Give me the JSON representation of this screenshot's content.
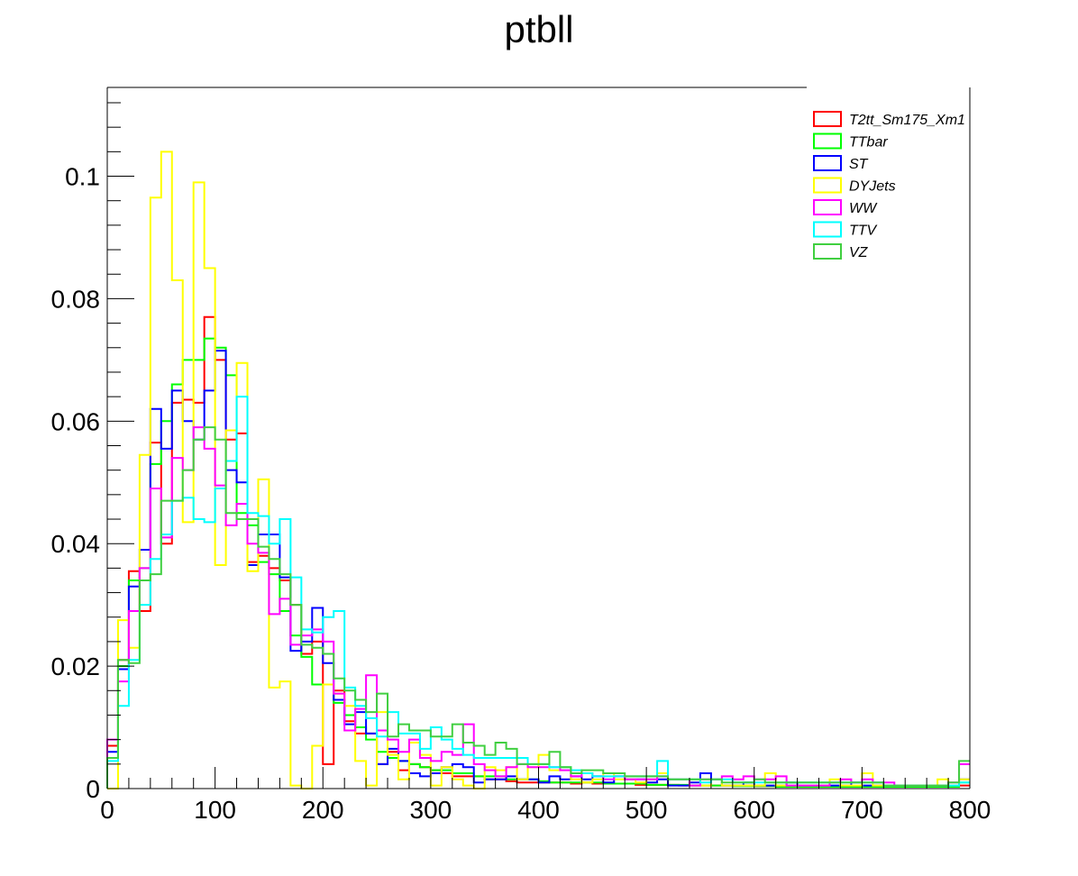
{
  "chart_data": {
    "type": "histogram",
    "title": "ptbll",
    "xlabel": "",
    "ylabel": "",
    "xlim": [
      0,
      800
    ],
    "ylim": [
      0,
      0.1145
    ],
    "bin_width": 10,
    "x_ticks": [
      {
        "value": 0,
        "label": "0"
      },
      {
        "value": 100,
        "label": "100"
      },
      {
        "value": 200,
        "label": "200"
      },
      {
        "value": 300,
        "label": "300"
      },
      {
        "value": 400,
        "label": "400"
      },
      {
        "value": 500,
        "label": "500"
      },
      {
        "value": 600,
        "label": "600"
      },
      {
        "value": 700,
        "label": "700"
      },
      {
        "value": 800,
        "label": "800"
      }
    ],
    "y_ticks": [
      {
        "value": 0,
        "label": "0"
      },
      {
        "value": 0.02,
        "label": "0.02"
      },
      {
        "value": 0.04,
        "label": "0.04"
      },
      {
        "value": 0.06,
        "label": "0.06"
      },
      {
        "value": 0.08,
        "label": "0.08"
      },
      {
        "value": 0.1,
        "label": "0.1"
      }
    ],
    "grid": false,
    "legend_position": "top-right",
    "series": [
      {
        "name": "T2tt_Sm175_Xm1",
        "color": "#ff0000",
        "values": [
          0.007,
          0.021,
          0.0355,
          0.029,
          0.0565,
          0.04,
          0.063,
          0.0635,
          0.063,
          0.077,
          0.07,
          0.057,
          0.058,
          0.037,
          0.038,
          0.036,
          0.034,
          0.03,
          0.022,
          0.024,
          0.004,
          0.016,
          0.011,
          0.009,
          0.009,
          0.004,
          0.006,
          0.003,
          0.004,
          0.0035,
          0.003,
          0.0025,
          0.002,
          0.002,
          0.002,
          0.0015,
          0.0015,
          0.0012,
          0.001,
          0.001,
          0.001,
          0.001,
          0.001,
          0.0008,
          0.001,
          0.0008,
          0.0008,
          0.0008,
          0.0008,
          0.0006,
          0.0006,
          0.0006,
          0.0006,
          0.0005,
          0.0005,
          0.0005,
          0.0005,
          0.0005,
          0.0005,
          0.0005,
          0.0004,
          0.0004,
          0.0004,
          0.0004,
          0.0004,
          0.0003,
          0.0003,
          0.0003,
          0.0003,
          0.0003,
          0.0003,
          0.0003,
          0.0003,
          0.0003,
          0.0003,
          0.0003,
          0.0003,
          0.0003,
          0.0003,
          0.0005
        ]
      },
      {
        "name": "TTbar",
        "color": "#00ff00",
        "values": [
          0.005,
          0.02,
          0.034,
          0.036,
          0.053,
          0.06,
          0.066,
          0.07,
          0.07,
          0.0735,
          0.072,
          0.0675,
          0.045,
          0.043,
          0.037,
          0.035,
          0.029,
          0.025,
          0.0215,
          0.017,
          0.017,
          0.014,
          0.012,
          0.01,
          0.008,
          0.006,
          0.005,
          0.0045,
          0.004,
          0.0035,
          0.003,
          0.003,
          0.0025,
          0.0025,
          0.002,
          0.002,
          0.002,
          0.0015,
          0.0015,
          0.0015,
          0.0012,
          0.001,
          0.001,
          0.001,
          0.001,
          0.001,
          0.0008,
          0.0008,
          0.0008,
          0.0008,
          0.0006,
          0.0006,
          0.0006,
          0.0006,
          0.0005,
          0.0005,
          0.0005,
          0.0005,
          0.0004,
          0.0004,
          0.0004,
          0.0004,
          0.0003,
          0.0003,
          0.0003,
          0.0003,
          0.0003,
          0.0003,
          0.0003,
          0.0003,
          0.0003,
          0.0003,
          0.0003,
          0.0003,
          0.0003,
          0.0003,
          0.0003,
          0.0003,
          0.0003,
          0.001
        ]
      },
      {
        "name": "ST",
        "color": "#0000ff",
        "values": [
          0.006,
          0.0195,
          0.033,
          0.039,
          0.062,
          0.0555,
          0.065,
          0.06,
          0.057,
          0.065,
          0.0715,
          0.052,
          0.05,
          0.0365,
          0.0415,
          0.0415,
          0.0345,
          0.0225,
          0.024,
          0.0295,
          0.0205,
          0.0145,
          0.0105,
          0.0125,
          0.009,
          0.004,
          0.0065,
          0.0045,
          0.0025,
          0.002,
          0.0025,
          0.0035,
          0.004,
          0.0035,
          0.001,
          0.0015,
          0.0015,
          0.002,
          0.0015,
          0.0015,
          0.001,
          0.002,
          0.0015,
          0.002,
          0.0015,
          0.002,
          0.001,
          0.002,
          0.0015,
          0.0015,
          0.001,
          0.0015,
          0.0005,
          0.0005,
          0.001,
          0.0025,
          0.0015,
          0.0005,
          0.0005,
          0.001,
          0.0005,
          0.0005,
          0.0005,
          0.001,
          0.0005,
          0.0005,
          0.0005,
          0.0005,
          0.0005,
          0.001,
          0.0005,
          0.0005,
          0.0005,
          0.0005,
          0.0005,
          0.0005,
          0.0005,
          0.0005,
          0.0005,
          0.0015
        ]
      },
      {
        "name": "DYJets",
        "color": "#ffff00",
        "values": [
          0.0,
          0.0275,
          0.023,
          0.0545,
          0.0965,
          0.104,
          0.083,
          0.0435,
          0.099,
          0.085,
          0.0365,
          0.0585,
          0.0695,
          0.0355,
          0.0505,
          0.0165,
          0.0175,
          0.0005,
          0.0,
          0.007,
          0.017,
          0.0155,
          0.0135,
          0.0045,
          0.0005,
          0.0125,
          0.0055,
          0.0015,
          0.0075,
          0.0055,
          0.0005,
          0.0035,
          0.0015,
          0.0005,
          0.0,
          0.0035,
          0.003,
          0.0035,
          0.0015,
          0.0035,
          0.0055,
          0.003,
          0.0035,
          0.0015,
          0.001,
          0.0015,
          0.0025,
          0.0015,
          0.0015,
          0.001,
          0.0015,
          0.0025,
          0.0015,
          0.0015,
          0.0015,
          0.0005,
          0.0015,
          0.0005,
          0.0005,
          0.0005,
          0.0005,
          0.0025,
          0.0005,
          0.0005,
          0.0005,
          0.0005,
          0.0005,
          0.0015,
          0.0005,
          0.0005,
          0.0025,
          0.0005,
          0.0005,
          0.0005,
          0.0005,
          0.0005,
          0.0005,
          0.0015,
          0.0005,
          0.0015
        ]
      },
      {
        "name": "WW",
        "color": "#ff00ff",
        "values": [
          0.008,
          0.0175,
          0.029,
          0.036,
          0.049,
          0.041,
          0.054,
          0.052,
          0.059,
          0.0555,
          0.0495,
          0.043,
          0.0465,
          0.04,
          0.0385,
          0.0285,
          0.031,
          0.0235,
          0.025,
          0.026,
          0.024,
          0.0155,
          0.0095,
          0.013,
          0.0185,
          0.0095,
          0.008,
          0.006,
          0.008,
          0.005,
          0.0045,
          0.006,
          0.0055,
          0.0105,
          0.004,
          0.003,
          0.002,
          0.0035,
          0.004,
          0.0035,
          0.0035,
          0.0035,
          0.003,
          0.002,
          0.0025,
          0.002,
          0.0015,
          0.002,
          0.0015,
          0.0015,
          0.0015,
          0.002,
          0.0015,
          0.0015,
          0.0005,
          0.0015,
          0.0015,
          0.002,
          0.0015,
          0.002,
          0.0015,
          0.0015,
          0.002,
          0.0005,
          0.0005,
          0.0005,
          0.0005,
          0.001,
          0.0015,
          0.001,
          0.0015,
          0.001,
          0.001,
          0.0005,
          0.0005,
          0.0005,
          0.0005,
          0.0005,
          0.001,
          0.004
        ]
      },
      {
        "name": "TTV",
        "color": "#00ffff",
        "values": [
          0.0045,
          0.0135,
          0.021,
          0.03,
          0.0375,
          0.0415,
          0.047,
          0.0475,
          0.044,
          0.0435,
          0.049,
          0.0535,
          0.064,
          0.045,
          0.0445,
          0.04,
          0.044,
          0.0345,
          0.026,
          0.0255,
          0.028,
          0.029,
          0.0165,
          0.0135,
          0.0115,
          0.0085,
          0.0125,
          0.009,
          0.009,
          0.0065,
          0.01,
          0.008,
          0.0065,
          0.0055,
          0.005,
          0.005,
          0.005,
          0.005,
          0.005,
          0.004,
          0.004,
          0.0035,
          0.0035,
          0.003,
          0.0025,
          0.002,
          0.002,
          0.002,
          0.002,
          0.002,
          0.002,
          0.0045,
          0.0015,
          0.0015,
          0.0015,
          0.001,
          0.0015,
          0.0015,
          0.001,
          0.001,
          0.001,
          0.001,
          0.001,
          0.001,
          0.001,
          0.001,
          0.001,
          0.001,
          0.001,
          0.001,
          0.001,
          0.001,
          0.0005,
          0.0005,
          0.0005,
          0.0005,
          0.0005,
          0.0005,
          0.0005,
          0.001
        ]
      },
      {
        "name": "VZ",
        "color": "#40cf40",
        "values": [
          0.005,
          0.021,
          0.0205,
          0.034,
          0.035,
          0.047,
          0.047,
          0.052,
          0.057,
          0.059,
          0.057,
          0.045,
          0.044,
          0.044,
          0.0395,
          0.0375,
          0.035,
          0.03,
          0.0235,
          0.023,
          0.022,
          0.018,
          0.016,
          0.0145,
          0.0125,
          0.0155,
          0.0085,
          0.0105,
          0.0095,
          0.0095,
          0.0085,
          0.0085,
          0.0105,
          0.0075,
          0.007,
          0.0055,
          0.0075,
          0.0065,
          0.004,
          0.004,
          0.004,
          0.006,
          0.0035,
          0.0025,
          0.003,
          0.003,
          0.0025,
          0.0025,
          0.002,
          0.002,
          0.002,
          0.002,
          0.0015,
          0.0015,
          0.0015,
          0.0015,
          0.0015,
          0.001,
          0.001,
          0.001,
          0.0015,
          0.001,
          0.001,
          0.001,
          0.001,
          0.001,
          0.001,
          0.001,
          0.001,
          0.001,
          0.001,
          0.001,
          0.0005,
          0.0005,
          0.0005,
          0.0005,
          0.0005,
          0.0005,
          0.001,
          0.0045
        ]
      }
    ]
  }
}
